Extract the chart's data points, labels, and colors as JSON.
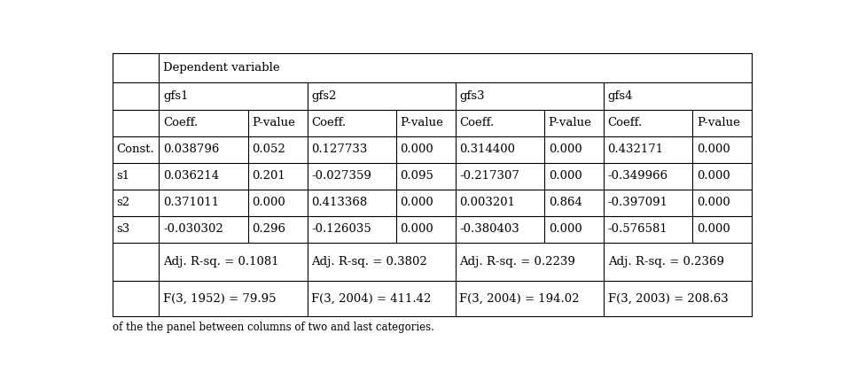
{
  "header_gfs": [
    "gfs1",
    "gfs2",
    "gfs3",
    "gfs4"
  ],
  "header_coeff": [
    "Coeff.",
    "P-value",
    "Coeff.",
    "P-value",
    "Coeff.",
    "P-value",
    "Coeff.",
    "P-value"
  ],
  "row_labels": [
    "Const.",
    "s1",
    "s2",
    "s3"
  ],
  "data": [
    [
      "0.038796",
      "0.052",
      "0.127733",
      "0.000",
      "0.314400",
      "0.000",
      "0.432171",
      "0.000"
    ],
    [
      "0.036214",
      "0.201",
      "-0.027359",
      "0.095",
      "-0.217307",
      "0.000",
      "-0.349966",
      "0.000"
    ],
    [
      "0.371011",
      "0.000",
      "0.413368",
      "0.000",
      "0.003201",
      "0.864",
      "-0.397091",
      "0.000"
    ],
    [
      "-0.030302",
      "0.296",
      "-0.126035",
      "0.000",
      "-0.380403",
      "0.000",
      "-0.576581",
      "0.000"
    ]
  ],
  "adj_rsq": [
    "Adj. R-sq. = 0.1081",
    "Adj. R-sq. = 0.3802",
    "Adj. R-sq. = 0.2239",
    "Adj. R-sq. = 0.2369"
  ],
  "fstat": [
    "F(3, 1952) = 79.95",
    "F(3, 2004) = 411.42",
    "F(3, 2004) = 194.02",
    "F(3, 2003) = 208.63"
  ],
  "bottom_note": "of the the panel between columns of two and last categories.",
  "bg_color": "#ffffff",
  "text_color": "#000000",
  "font_size": 9.5,
  "lw": 0.8
}
